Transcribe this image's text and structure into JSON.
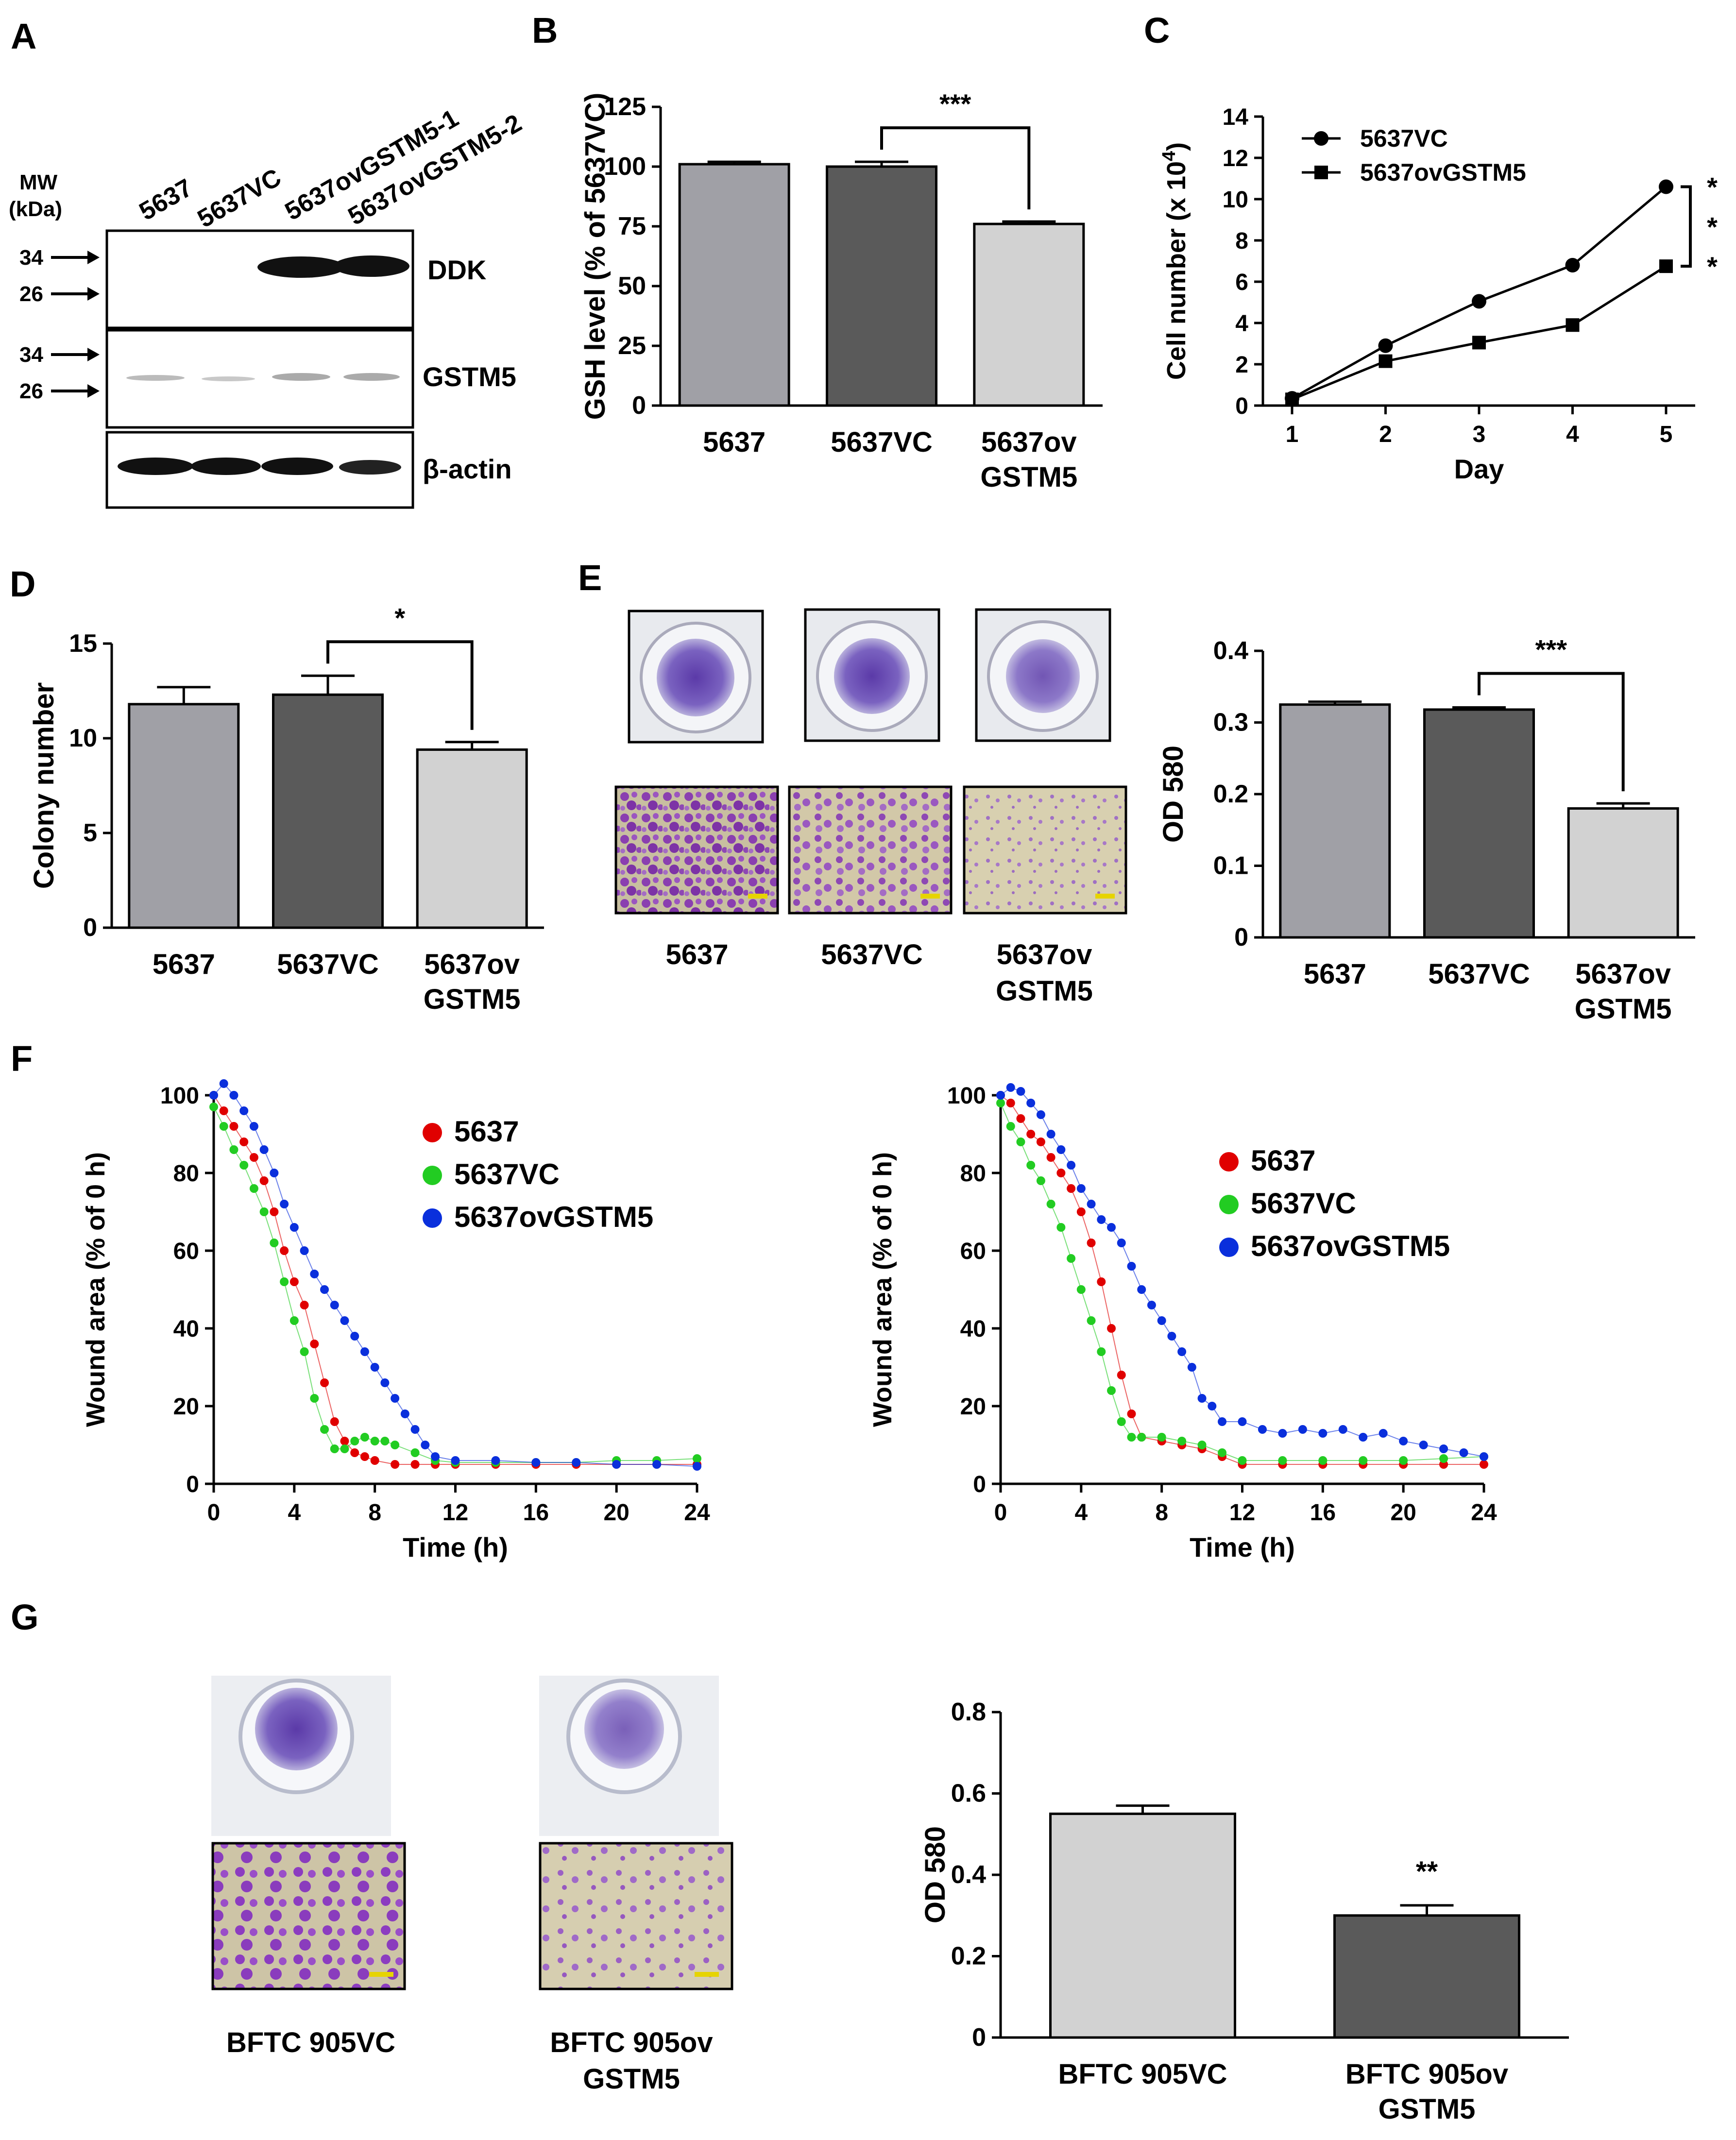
{
  "panel_labels": {
    "a": "A",
    "b": "B",
    "c": "C",
    "d": "D",
    "e": "E",
    "f": "F",
    "g": "G"
  },
  "panelA": {
    "mw_label": "MW",
    "kda_label": "(kDa)",
    "lanes": [
      "5637",
      "5637VC",
      "5637ovGSTM5-1",
      "5637ovGSTM5-2"
    ],
    "marker_34": "34",
    "marker_26": "26",
    "blots": [
      "DDK",
      "GSTM5",
      "β-actin"
    ]
  },
  "panelE": {
    "photo_labels": [
      "5637",
      "5637VC",
      "5637ov",
      "GSTM5"
    ]
  },
  "panelG": {
    "photo_labels": [
      "BFTC 905VC",
      "BFTC 905ov",
      "GSTM5"
    ]
  },
  "colors": {
    "bar_light": "#c8c8c8",
    "bar_dark": "#5a5a5a",
    "bar_mid": "#a0a0a0",
    "red": "#e00000",
    "green": "#22cc22",
    "blue": "#0a2fdc",
    "stain": "#7a3fa8"
  },
  "chart_data": [
    {
      "id": "B",
      "type": "bar",
      "categories": [
        "5637",
        "5637VC",
        "5637ov\nGSTM5"
      ],
      "values": [
        101,
        100,
        76
      ],
      "errors": [
        1,
        2,
        1
      ],
      "ylabel": "GSH level (% of 5637VC)",
      "ylim": [
        0,
        125
      ],
      "yticks": [
        0,
        25,
        50,
        75,
        100,
        125
      ],
      "significance": {
        "label": "***",
        "between": [
          1,
          2
        ]
      }
    },
    {
      "id": "C",
      "type": "line",
      "x": [
        1,
        2,
        3,
        4,
        5
      ],
      "series": [
        {
          "name": "5637VC",
          "values": [
            0.35,
            2.9,
            5.05,
            6.8,
            10.6
          ],
          "marker": "circle"
        },
        {
          "name": "5637ovGSTM5",
          "values": [
            0.3,
            2.15,
            3.05,
            3.9,
            6.75
          ],
          "marker": "square"
        }
      ],
      "xlabel": "Day",
      "ylabel": "Cell number (x 10",
      "ylabel_exponent": "4",
      "ylabel_close": ")",
      "ylim": [
        0,
        14
      ],
      "yticks": [
        0,
        2,
        4,
        6,
        8,
        10,
        12,
        14
      ],
      "legend_position": "top-left",
      "significance": {
        "label": "***"
      }
    },
    {
      "id": "D",
      "type": "bar",
      "categories": [
        "5637",
        "5637VC",
        "5637ov\nGSTM5"
      ],
      "values": [
        11.8,
        12.3,
        9.4
      ],
      "errors": [
        0.9,
        1.0,
        0.4
      ],
      "ylabel": "Colony number",
      "ylim": [
        0,
        15
      ],
      "yticks": [
        0,
        5,
        10,
        15
      ],
      "significance": {
        "label": "*",
        "between": [
          1,
          2
        ]
      }
    },
    {
      "id": "E",
      "type": "bar",
      "categories": [
        "5637",
        "5637VC",
        "5637ov\nGSTM5"
      ],
      "values": [
        0.325,
        0.318,
        0.18
      ],
      "errors": [
        0.004,
        0.003,
        0.007
      ],
      "ylabel": "OD 580",
      "ylim": [
        0,
        0.4
      ],
      "yticks": [
        0,
        0.1,
        0.2,
        0.3,
        0.4
      ],
      "significance": {
        "label": "***",
        "between": [
          1,
          2
        ]
      }
    },
    {
      "id": "F1",
      "type": "scatter",
      "xlabel": "Time (h)",
      "ylabel": "Wound area (% of 0 h)",
      "xlim": [
        0,
        24
      ],
      "xticks": [
        0,
        4,
        8,
        12,
        16,
        20,
        24
      ],
      "ylim": [
        0,
        100
      ],
      "yticks": [
        0,
        20,
        40,
        60,
        80,
        100
      ],
      "legend_position": "top-right",
      "series": [
        {
          "name": "5637",
          "color": "#e00000",
          "values": [
            [
              0,
              100
            ],
            [
              0.5,
              96
            ],
            [
              1,
              92
            ],
            [
              1.5,
              88
            ],
            [
              2,
              84
            ],
            [
              2.5,
              78
            ],
            [
              3,
              70
            ],
            [
              3.5,
              60
            ],
            [
              4,
              52
            ],
            [
              4.5,
              46
            ],
            [
              5,
              36
            ],
            [
              5.5,
              26
            ],
            [
              6,
              16
            ],
            [
              6.5,
              11
            ],
            [
              7,
              8
            ],
            [
              7.5,
              7
            ],
            [
              8,
              6
            ],
            [
              9,
              5
            ],
            [
              10,
              5
            ],
            [
              11,
              5
            ],
            [
              12,
              5
            ],
            [
              14,
              5
            ],
            [
              16,
              5
            ],
            [
              18,
              5
            ],
            [
              20,
              5
            ],
            [
              22,
              5
            ],
            [
              24,
              5
            ]
          ]
        },
        {
          "name": "5637VC",
          "color": "#22cc22",
          "values": [
            [
              0,
              97
            ],
            [
              0.5,
              92
            ],
            [
              1,
              86
            ],
            [
              1.5,
              82
            ],
            [
              2,
              76
            ],
            [
              2.5,
              70
            ],
            [
              3,
              62
            ],
            [
              3.5,
              52
            ],
            [
              4,
              42
            ],
            [
              4.5,
              34
            ],
            [
              5,
              22
            ],
            [
              5.5,
              14
            ],
            [
              6,
              9
            ],
            [
              6.5,
              9
            ],
            [
              7,
              11
            ],
            [
              7.5,
              12
            ],
            [
              8,
              11
            ],
            [
              8.5,
              11
            ],
            [
              9,
              10
            ],
            [
              10,
              8
            ],
            [
              11,
              6
            ],
            [
              12,
              5.5
            ],
            [
              14,
              5.5
            ],
            [
              16,
              5.5
            ],
            [
              18,
              5.5
            ],
            [
              20,
              6
            ],
            [
              22,
              6
            ],
            [
              24,
              6.5
            ]
          ]
        },
        {
          "name": "5637ovGSTM5",
          "color": "#0a2fdc",
          "values": [
            [
              0,
              100
            ],
            [
              0.5,
              103
            ],
            [
              1,
              100
            ],
            [
              1.5,
              96
            ],
            [
              2,
              92
            ],
            [
              2.5,
              86
            ],
            [
              3,
              80
            ],
            [
              3.5,
              72
            ],
            [
              4,
              66
            ],
            [
              4.5,
              60
            ],
            [
              5,
              54
            ],
            [
              5.5,
              50
            ],
            [
              6,
              46
            ],
            [
              6.5,
              42
            ],
            [
              7,
              38
            ],
            [
              7.5,
              34
            ],
            [
              8,
              30
            ],
            [
              8.5,
              26
            ],
            [
              9,
              22
            ],
            [
              9.5,
              18
            ],
            [
              10,
              14
            ],
            [
              10.5,
              10
            ],
            [
              11,
              7
            ],
            [
              12,
              6
            ],
            [
              14,
              6
            ],
            [
              16,
              5.5
            ],
            [
              18,
              5.5
            ],
            [
              20,
              5
            ],
            [
              22,
              5
            ],
            [
              24,
              4.5
            ]
          ]
        }
      ]
    },
    {
      "id": "F2",
      "type": "scatter",
      "xlabel": "Time (h)",
      "ylabel": "Wound area (% of 0 h)",
      "xlim": [
        0,
        24
      ],
      "xticks": [
        0,
        4,
        8,
        12,
        16,
        20,
        24
      ],
      "ylim": [
        0,
        100
      ],
      "yticks": [
        0,
        20,
        40,
        60,
        80,
        100
      ],
      "legend_position": "top-right",
      "series": [
        {
          "name": "5637",
          "color": "#e00000",
          "values": [
            [
              0,
              100
            ],
            [
              0.5,
              98
            ],
            [
              1,
              94
            ],
            [
              1.5,
              90
            ],
            [
              2,
              88
            ],
            [
              2.5,
              84
            ],
            [
              3,
              80
            ],
            [
              3.5,
              76
            ],
            [
              4,
              70
            ],
            [
              4.5,
              62
            ],
            [
              5,
              52
            ],
            [
              5.5,
              40
            ],
            [
              6,
              28
            ],
            [
              6.5,
              18
            ],
            [
              7,
              12
            ],
            [
              8,
              11
            ],
            [
              9,
              10
            ],
            [
              10,
              9
            ],
            [
              11,
              7
            ],
            [
              12,
              5
            ],
            [
              14,
              5
            ],
            [
              16,
              5
            ],
            [
              18,
              5
            ],
            [
              20,
              5
            ],
            [
              22,
              5
            ],
            [
              24,
              5
            ]
          ]
        },
        {
          "name": "5637VC",
          "color": "#22cc22",
          "values": [
            [
              0,
              98
            ],
            [
              0.5,
              92
            ],
            [
              1,
              88
            ],
            [
              1.5,
              82
            ],
            [
              2,
              78
            ],
            [
              2.5,
              72
            ],
            [
              3,
              66
            ],
            [
              3.5,
              58
            ],
            [
              4,
              50
            ],
            [
              4.5,
              42
            ],
            [
              5,
              34
            ],
            [
              5.5,
              24
            ],
            [
              6,
              16
            ],
            [
              6.5,
              12
            ],
            [
              7,
              12
            ],
            [
              8,
              12
            ],
            [
              9,
              11
            ],
            [
              10,
              10
            ],
            [
              11,
              8
            ],
            [
              12,
              6
            ],
            [
              14,
              6
            ],
            [
              16,
              6
            ],
            [
              18,
              6
            ],
            [
              20,
              6
            ],
            [
              22,
              6.5
            ],
            [
              24,
              7
            ]
          ]
        },
        {
          "name": "5637ovGSTM5",
          "color": "#0a2fdc",
          "values": [
            [
              0,
              100
            ],
            [
              0.5,
              102
            ],
            [
              1,
              101
            ],
            [
              1.5,
              98
            ],
            [
              2,
              95
            ],
            [
              2.5,
              90
            ],
            [
              3,
              86
            ],
            [
              3.5,
              82
            ],
            [
              4,
              76
            ],
            [
              4.5,
              72
            ],
            [
              5,
              68
            ],
            [
              5.5,
              66
            ],
            [
              6,
              62
            ],
            [
              6.5,
              56
            ],
            [
              7,
              50
            ],
            [
              7.5,
              46
            ],
            [
              8,
              42
            ],
            [
              8.5,
              38
            ],
            [
              9,
              34
            ],
            [
              9.5,
              30
            ],
            [
              10,
              22
            ],
            [
              10.5,
              20
            ],
            [
              11,
              16
            ],
            [
              12,
              16
            ],
            [
              13,
              14
            ],
            [
              14,
              13
            ],
            [
              15,
              14
            ],
            [
              16,
              13
            ],
            [
              17,
              14
            ],
            [
              18,
              12
            ],
            [
              19,
              13
            ],
            [
              20,
              11
            ],
            [
              21,
              10
            ],
            [
              22,
              9
            ],
            [
              23,
              8
            ],
            [
              24,
              7
            ]
          ]
        }
      ]
    },
    {
      "id": "G",
      "type": "bar",
      "categories": [
        "BFTC 905VC",
        "BFTC 905ov\nGSTM5"
      ],
      "values": [
        0.55,
        0.3
      ],
      "errors": [
        0.02,
        0.025
      ],
      "ylabel": "OD 580",
      "ylim": [
        0,
        0.8
      ],
      "yticks": [
        0,
        0.2,
        0.4,
        0.6,
        0.8
      ],
      "significance": {
        "label": "**",
        "between": [
          1,
          1
        ]
      }
    }
  ]
}
